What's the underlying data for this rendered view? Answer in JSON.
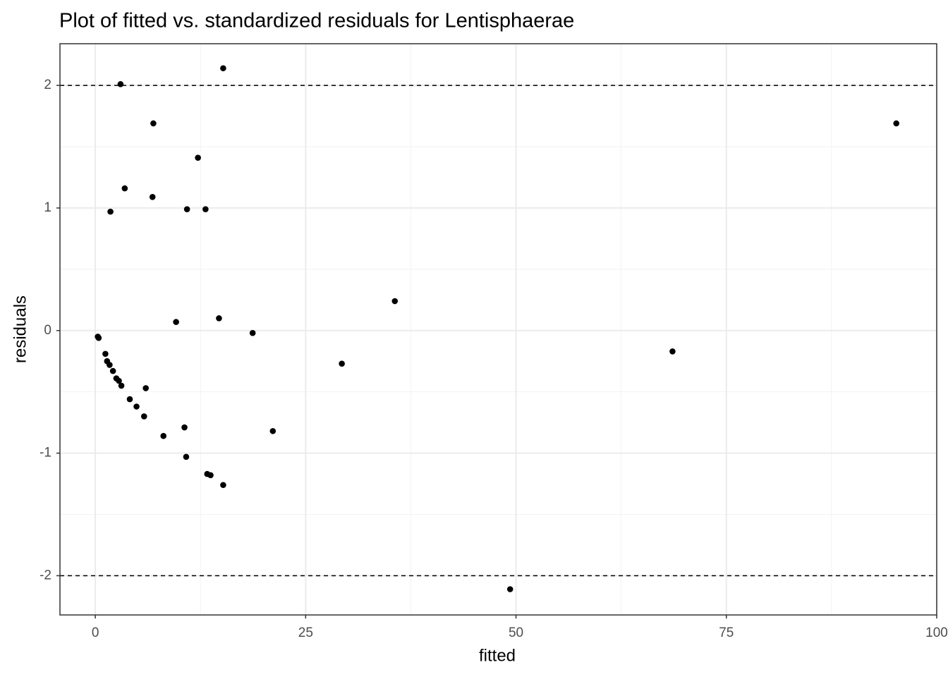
{
  "chart_data": {
    "type": "scatter",
    "title": "Plot of fitted vs. standardized residuals for Lentisphaerae",
    "x_label": "fitted",
    "y_label": "residuals",
    "xlim": [
      -4.2,
      100
    ],
    "ylim": [
      -2.32,
      2.34
    ],
    "xticks": [
      0,
      25,
      50,
      75,
      100
    ],
    "yticks": [
      -2,
      -1,
      0,
      1,
      2
    ],
    "x_minor_ticks": [
      12.5,
      37.5,
      62.5,
      87.5
    ],
    "y_minor_ticks": [
      -1.5,
      -0.5,
      0.5,
      1.5
    ],
    "grid": true,
    "hlines": [
      -2,
      2
    ],
    "color": "#000000",
    "series": [
      {
        "name": "residuals",
        "x": [
          3.0,
          15.2,
          6.9,
          95.2,
          12.2,
          3.5,
          6.8,
          10.9,
          13.1,
          1.8,
          35.6,
          9.6,
          14.7,
          18.7,
          0.3,
          0.4,
          68.6,
          1.2,
          1.4,
          1.7,
          2.1,
          2.5,
          2.8,
          3.1,
          6.0,
          29.3,
          4.1,
          4.9,
          5.8,
          10.6,
          21.1,
          8.1,
          10.8,
          13.3,
          13.7,
          15.2,
          49.3
        ],
        "values": [
          2.01,
          2.14,
          1.69,
          1.69,
          1.41,
          1.16,
          1.09,
          0.99,
          0.99,
          0.97,
          0.24,
          0.07,
          0.1,
          -0.02,
          -0.05,
          -0.06,
          -0.17,
          -0.19,
          -0.25,
          -0.28,
          -0.33,
          -0.39,
          -0.41,
          -0.45,
          -0.47,
          -0.27,
          -0.56,
          -0.62,
          -0.7,
          -0.79,
          -0.82,
          -0.86,
          -1.03,
          -1.17,
          -1.18,
          -1.26,
          -2.11
        ]
      }
    ]
  }
}
